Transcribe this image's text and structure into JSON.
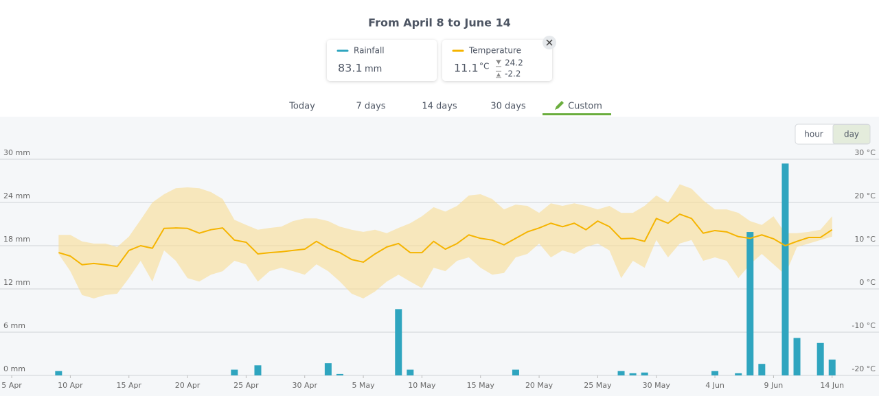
{
  "header": {
    "title": "From April 8 to June 14"
  },
  "cards": [
    {
      "value": 83.1,
      "unit": "mm"
    },
    {
      "value": 11.1,
      "unit": "°C",
      "max": 24.2,
      "min": -2.2
    }
  ],
  "tabs": {
    "items": [
      "Today",
      "7 days",
      "14 days",
      "30 days",
      "Custom"
    ],
    "active": 4
  },
  "resolution": {
    "options": [
      "hour",
      "day"
    ],
    "active": 1
  },
  "chart_data": {
    "type": "bar-line",
    "x": [
      "9 Apr",
      "10 Apr",
      "11 Apr",
      "12 Apr",
      "13 Apr",
      "14 Apr",
      "15 Apr",
      "16 Apr",
      "17 Apr",
      "18 Apr",
      "19 Apr",
      "20 Apr",
      "21 Apr",
      "22 Apr",
      "23 Apr",
      "24 Apr",
      "25 Apr",
      "26 Apr",
      "27 Apr",
      "28 Apr",
      "29 Apr",
      "30 Apr",
      "1 May",
      "2 May",
      "3 May",
      "4 May",
      "5 May",
      "6 May",
      "7 May",
      "8 May",
      "9 May",
      "10 May",
      "11 May",
      "12 May",
      "13 May",
      "14 May",
      "15 May",
      "16 May",
      "17 May",
      "18 May",
      "19 May",
      "20 May",
      "21 May",
      "22 May",
      "23 May",
      "24 May",
      "25 May",
      "26 May",
      "27 May",
      "28 May",
      "29 May",
      "30 May",
      "31 May",
      "1 Jun",
      "2 Jun",
      "3 Jun",
      "4 Jun",
      "5 Jun",
      "6 Jun",
      "7 Jun",
      "8 Jun",
      "9 Jun",
      "10 Jun",
      "11 Jun",
      "12 Jun",
      "13 Jun",
      "14 Jun"
    ],
    "series": [
      {
        "name": "Rainfall",
        "color": "#2fa5bf",
        "type": "bar",
        "axis": "y",
        "values": [
          0.6,
          0,
          0,
          0,
          0,
          0,
          0,
          0,
          0,
          0,
          0,
          0,
          0,
          0,
          0,
          0.8,
          0,
          1.4,
          0,
          0,
          0,
          0,
          0,
          1.7,
          0.2,
          0,
          0,
          0,
          0,
          9.2,
          0.8,
          0,
          0,
          0,
          0,
          0,
          0,
          0,
          0,
          0.8,
          0,
          0,
          0,
          0,
          0,
          0,
          0,
          0,
          0.6,
          0.3,
          0.4,
          0,
          0,
          0,
          0,
          0,
          0.6,
          0,
          0.3,
          19.9,
          1.6,
          0,
          29.4,
          5.2,
          0,
          4.5,
          2.2
        ]
      },
      {
        "name": "Temperature",
        "color": "#f5b400",
        "band_color": "#f8dc92",
        "type": "line",
        "axis": "y2",
        "values": [
          8.4,
          7.6,
          5.6,
          5.9,
          5.6,
          5.2,
          8.9,
          10.0,
          9.4,
          14.0,
          14.1,
          14.0,
          12.9,
          13.7,
          14.1,
          11.3,
          10.8,
          8.1,
          8.4,
          8.6,
          8.9,
          9.2,
          11.0,
          9.4,
          8.4,
          6.8,
          6.2,
          8.1,
          9.7,
          10.5,
          8.4,
          8.4,
          11.0,
          9.2,
          10.5,
          12.5,
          11.7,
          11.3,
          10.2,
          11.7,
          13.2,
          14.1,
          15.2,
          14.4,
          15.2,
          13.7,
          15.7,
          14.4,
          11.6,
          11.7,
          11.0,
          16.3,
          15.2,
          17.3,
          16.3,
          12.9,
          13.5,
          13.2,
          12.1,
          11.7,
          12.5,
          11.6,
          10.0,
          11.0,
          11.9,
          11.9,
          13.7
        ],
        "max_values": [
          12.5,
          12.5,
          11.0,
          10.5,
          10.5,
          9.7,
          12.1,
          16.0,
          20.0,
          21.9,
          23.3,
          23.5,
          23.3,
          22.4,
          20.8,
          16.0,
          14.8,
          13.7,
          14.1,
          14.4,
          15.7,
          16.3,
          16.3,
          15.7,
          14.4,
          13.7,
          13.2,
          13.7,
          12.9,
          14.1,
          15.2,
          16.8,
          18.9,
          17.9,
          19.2,
          21.6,
          21.9,
          20.8,
          18.4,
          19.5,
          19.2,
          17.6,
          19.8,
          19.2,
          19.8,
          19.2,
          18.4,
          19.2,
          17.6,
          17.6,
          19.2,
          21.6,
          20.0,
          24.2,
          23.2,
          20.5,
          18.4,
          18.4,
          17.6,
          15.7,
          14.8,
          16.8,
          12.9,
          12.9,
          13.2,
          13.7,
          16.8
        ],
        "min_values": [
          8.1,
          4.1,
          -1.4,
          -2.2,
          -1.4,
          -1.1,
          2.5,
          6.5,
          1.7,
          8.9,
          6.5,
          2.5,
          1.7,
          3.3,
          4.1,
          6.5,
          5.7,
          1.7,
          4.1,
          4.9,
          4.1,
          3.3,
          5.7,
          4.1,
          1.7,
          -1.1,
          -2.2,
          -0.6,
          1.7,
          3.3,
          1.7,
          0.2,
          4.9,
          4.1,
          6.5,
          7.3,
          4.9,
          3.3,
          3.7,
          7.3,
          8.1,
          10.5,
          7.3,
          8.9,
          8.1,
          9.7,
          10.5,
          8.9,
          2.5,
          6.5,
          4.9,
          11.3,
          7.3,
          10.5,
          11.3,
          6.5,
          7.3,
          6.5,
          2.5,
          5.7,
          8.1,
          5.7,
          3.3,
          9.7,
          10.5,
          11.3,
          12.1
        ]
      }
    ],
    "xlim": [
      "4 Apr",
      "18 Jun"
    ],
    "xticks": [
      "5 Apr",
      "10 Apr",
      "15 Apr",
      "20 Apr",
      "25 Apr",
      "30 Apr",
      "5 May",
      "10 May",
      "15 May",
      "20 May",
      "25 May",
      "30 May",
      "4 Jun",
      "9 Jun",
      "14 Jun"
    ],
    "ylim": [
      0,
      30
    ],
    "yticks": [
      {
        "value": 0,
        "label": "0 mm"
      },
      {
        "value": 6,
        "label": "6 mm"
      },
      {
        "value": 12,
        "label": "12 mm"
      },
      {
        "value": 18,
        "label": "18 mm"
      },
      {
        "value": 24,
        "label": "24 mm"
      },
      {
        "value": 30,
        "label": "30 mm"
      }
    ],
    "y2lim": [
      -20,
      30
    ],
    "y2ticks": [
      {
        "value": -20,
        "label": "-20 °C"
      },
      {
        "value": -10,
        "label": "-10 °C"
      },
      {
        "value": 0,
        "label": "0 °C"
      },
      {
        "value": 10,
        "label": "10 °C"
      },
      {
        "value": 20,
        "label": "20 °C"
      },
      {
        "value": 30,
        "label": "30 °C"
      }
    ],
    "grid": true
  }
}
